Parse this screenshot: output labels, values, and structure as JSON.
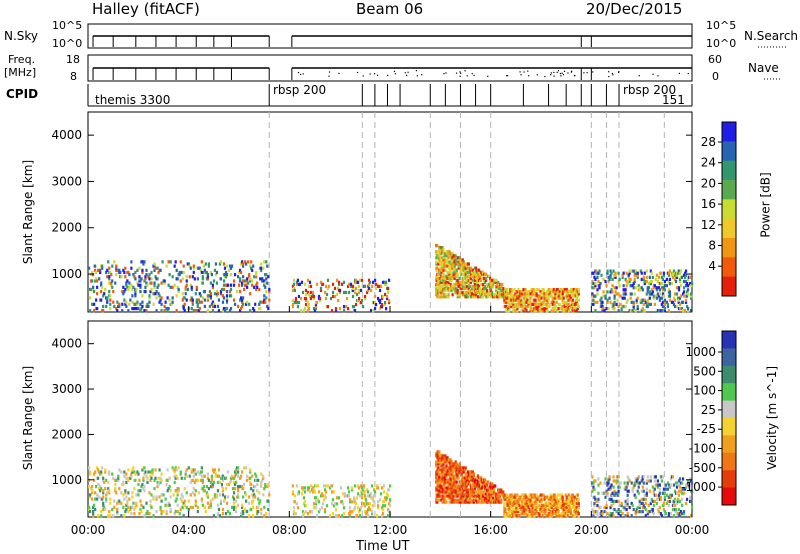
{
  "header": {
    "station": "Halley (fitACF)",
    "beam": "Beam 06",
    "date": "20/Dec/2015"
  },
  "top_panels": {
    "nsky_label": "N.Sky",
    "nsky_ticks": [
      "10^5",
      "10^0"
    ],
    "nsearch_label": "N.Search",
    "nsearch_ticks": [
      "10^5",
      "10^0"
    ],
    "freq_label": "Freq.",
    "freq_unit": "[MHz]",
    "freq_ticks": [
      "18",
      "8"
    ],
    "nave_label": "Nave",
    "nave_ticks": [
      "60",
      "0"
    ],
    "cpid_label": "CPID",
    "cpid_entries": [
      "themis 3300",
      "rbsp 200",
      "rbsp 200",
      "151"
    ]
  },
  "colorbars": {
    "power": {
      "label": "Power [dB]",
      "ticks": [
        "28",
        "24",
        "20",
        "16",
        "12",
        "8",
        "4"
      ],
      "colors": [
        "#1e1ee6",
        "#2864b4",
        "#32966e",
        "#5aaa50",
        "#c8dc32",
        "#f0c828",
        "#f09614",
        "#f05a0a",
        "#e61e0a"
      ]
    },
    "velocity": {
      "label": "Velocity [m s^-1]",
      "ticks": [
        "1000",
        "500",
        "100",
        "25",
        "-25",
        "-100",
        "-500",
        "-1000"
      ],
      "colors": [
        "#2832b4",
        "#3c64a0",
        "#3c8c6e",
        "#50c850",
        "#c8c8c8",
        "#f5d232",
        "#f0a01e",
        "#f07814",
        "#e63c0a",
        "#e60a0a"
      ]
    }
  },
  "chart_data": [
    {
      "type": "heatmap",
      "name": "power",
      "ylabel": "Slant Range [km]",
      "yticks": [
        "4000",
        "3000",
        "2000",
        "1000"
      ],
      "ylim": [
        180,
        4500
      ],
      "xlim": [
        0,
        24
      ],
      "scatter_regions": [
        {
          "t0": 0.0,
          "t1": 7.2,
          "r0": 200,
          "r1": 1300,
          "dens": 0.12,
          "c": [
            "#1e1ee6",
            "#2864b4",
            "#32966e",
            "#c8dc32",
            "#f05a0a"
          ]
        },
        {
          "t0": 8.1,
          "t1": 12.0,
          "r0": 200,
          "r1": 900,
          "dens": 0.14,
          "c": [
            "#1e1ee6",
            "#32966e",
            "#c8dc32",
            "#f09614",
            "#e61e0a"
          ]
        },
        {
          "t0": 13.8,
          "t1": 16.5,
          "r0": 500,
          "r1": 1650,
          "dens": 0.55,
          "c": [
            "#f0c828",
            "#f09614",
            "#e61e0a",
            "#c8dc32",
            "#5aaa50"
          ]
        },
        {
          "t0": 16.5,
          "t1": 19.5,
          "r0": 200,
          "r1": 700,
          "dens": 0.5,
          "c": [
            "#f09614",
            "#e61e0a",
            "#c8dc32",
            "#f0c828"
          ]
        },
        {
          "t0": 20.0,
          "t1": 24.0,
          "r0": 200,
          "r1": 1100,
          "dens": 0.18,
          "c": [
            "#1e1ee6",
            "#2864b4",
            "#32966e",
            "#c8dc32",
            "#f09614"
          ]
        }
      ]
    },
    {
      "type": "heatmap",
      "name": "velocity",
      "ylabel": "Slant Range [km]",
      "yticks": [
        "4000",
        "3000",
        "2000",
        "1000"
      ],
      "ylim": [
        180,
        4500
      ],
      "xlim": [
        0,
        24
      ],
      "xticks": [
        "00:00",
        "04:00",
        "08:00",
        "12:00",
        "16:00",
        "20:00",
        "00:00"
      ],
      "xlabel": "Time UT",
      "scatter_regions": [
        {
          "t0": 0.0,
          "t1": 7.2,
          "r0": 200,
          "r1": 1300,
          "dens": 0.12,
          "c": [
            "#50c850",
            "#3c8c6e",
            "#c8c8c8",
            "#f5d232",
            "#f0a01e"
          ]
        },
        {
          "t0": 8.1,
          "t1": 12.0,
          "r0": 200,
          "r1": 900,
          "dens": 0.14,
          "c": [
            "#50c850",
            "#f0a01e",
            "#f5d232",
            "#c8c8c8"
          ]
        },
        {
          "t0": 13.8,
          "t1": 16.5,
          "r0": 500,
          "r1": 1650,
          "dens": 0.55,
          "c": [
            "#e63c0a",
            "#f07814",
            "#e60a0a",
            "#f0a01e"
          ]
        },
        {
          "t0": 16.5,
          "t1": 19.5,
          "r0": 200,
          "r1": 700,
          "dens": 0.5,
          "c": [
            "#f07814",
            "#f0a01e",
            "#e63c0a",
            "#f5d232"
          ]
        },
        {
          "t0": 20.0,
          "t1": 24.0,
          "r0": 200,
          "r1": 1100,
          "dens": 0.18,
          "c": [
            "#50c850",
            "#3c64a0",
            "#2832b4",
            "#f0a01e",
            "#c8c8c8"
          ]
        }
      ]
    }
  ],
  "dashed_times": [
    7.2,
    10.9,
    11.4,
    13.6,
    14.8,
    16.0,
    20.0,
    20.6,
    21.1,
    22.9
  ]
}
